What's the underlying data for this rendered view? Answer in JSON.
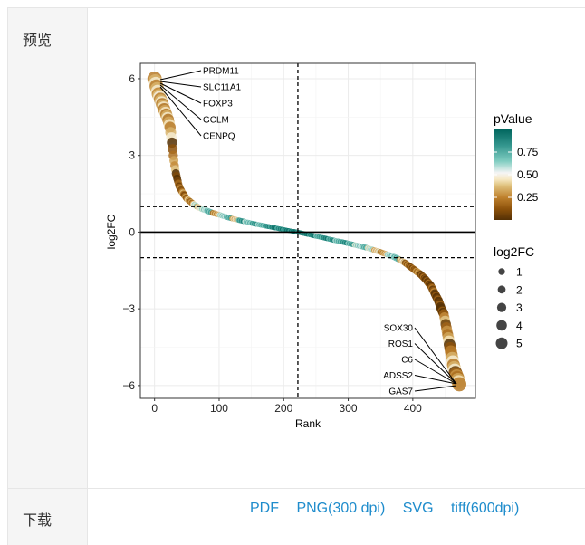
{
  "labels": {
    "preview": "预览",
    "download": "下载"
  },
  "downloads": [
    "PDF",
    "PNG(300 dpi)",
    "SVG",
    "tiff(600dpi)"
  ],
  "colors": {
    "link": "#1e8ccc",
    "low": "#543005",
    "mid": "#f5f5f5",
    "high": "#01665e"
  },
  "chart_data": {
    "type": "scatter",
    "xlabel": "Rank",
    "ylabel": "log2FC",
    "xlim": [
      -22,
      497
    ],
    "ylim": [
      -6.5,
      6.6
    ],
    "xticks": [
      "0",
      "100",
      "200",
      "300",
      "400"
    ],
    "xtick_values": [
      0,
      100,
      200,
      300,
      400
    ],
    "yticks": [
      "−6",
      "−3",
      "0",
      "3",
      "6"
    ],
    "ytick_values": [
      -6,
      -3,
      0,
      3,
      6
    ],
    "hlines_dashed": [
      1,
      -1
    ],
    "hline_solid": 0,
    "vline_dashed": 222,
    "rank": [
      0,
      3,
      6,
      9,
      12,
      15,
      18,
      21,
      24,
      27,
      29,
      31,
      33,
      35,
      38,
      42,
      46,
      50,
      55,
      60,
      66,
      72,
      80,
      90,
      100,
      110,
      120,
      130,
      140,
      150,
      160,
      170,
      180,
      190,
      200,
      210,
      222,
      230,
      240,
      250,
      260,
      270,
      280,
      290,
      300,
      310,
      320,
      330,
      340,
      350,
      360,
      370,
      380,
      388,
      396,
      404,
      412,
      420,
      428,
      434,
      440,
      444,
      448,
      451,
      454,
      457,
      460,
      463,
      466,
      469,
      472
    ],
    "log2FC": [
      6.0,
      5.7,
      5.4,
      5.2,
      5.0,
      4.8,
      4.6,
      4.4,
      4.1,
      3.5,
      3.0,
      2.6,
      2.3,
      2.1,
      1.8,
      1.6,
      1.45,
      1.3,
      1.2,
      1.1,
      1.0,
      0.92,
      0.85,
      0.75,
      0.68,
      0.6,
      0.53,
      0.47,
      0.41,
      0.35,
      0.3,
      0.25,
      0.2,
      0.15,
      0.1,
      0.05,
      0.0,
      -0.05,
      -0.1,
      -0.16,
      -0.21,
      -0.27,
      -0.33,
      -0.38,
      -0.44,
      -0.5,
      -0.56,
      -0.62,
      -0.7,
      -0.78,
      -0.87,
      -0.96,
      -1.08,
      -1.2,
      -1.35,
      -1.5,
      -1.65,
      -1.85,
      -2.1,
      -2.4,
      -2.7,
      -3.0,
      -3.2,
      -3.6,
      -4.0,
      -4.4,
      -4.8,
      -5.2,
      -5.5,
      -5.7,
      -5.95
    ],
    "pValue": [
      0.38,
      0.38,
      0.4,
      0.38,
      0.37,
      0.36,
      0.37,
      0.36,
      0.38,
      0.15,
      0.35,
      0.42,
      0.12,
      0.1,
      0.2,
      0.3,
      0.22,
      0.35,
      0.25,
      0.55,
      0.45,
      0.6,
      0.7,
      0.3,
      0.6,
      0.72,
      0.4,
      0.8,
      0.65,
      0.78,
      0.7,
      0.82,
      0.88,
      0.85,
      0.9,
      0.92,
      0.95,
      0.9,
      0.88,
      0.75,
      0.86,
      0.8,
      0.7,
      0.82,
      0.75,
      0.6,
      0.7,
      0.55,
      0.4,
      0.3,
      0.62,
      0.7,
      0.4,
      0.2,
      0.15,
      0.25,
      0.12,
      0.1,
      0.15,
      0.05,
      0.08,
      0.05,
      0.3,
      0.2,
      0.35,
      0.15,
      0.38,
      0.38,
      0.2,
      0.35,
      0.38
    ],
    "annotations_top": [
      "PRDM11",
      "SLC11A1",
      "FOXP3",
      "GCLM",
      "CENPQ"
    ],
    "annotations_bottom": [
      "SOX30",
      "ROS1",
      "C6",
      "ADSS2",
      "GAS7"
    ],
    "legend_color": {
      "title": "pValue",
      "ticks": [
        "0.75",
        "0.50",
        "0.25"
      ],
      "tick_values": [
        0.75,
        0.5,
        0.25
      ],
      "range": [
        0,
        1
      ]
    },
    "legend_size": {
      "title": "log2FC",
      "labels": [
        "1",
        "2",
        "3",
        "4",
        "5"
      ],
      "values": [
        1,
        2,
        3,
        4,
        5
      ]
    },
    "legend_placement": "right"
  }
}
